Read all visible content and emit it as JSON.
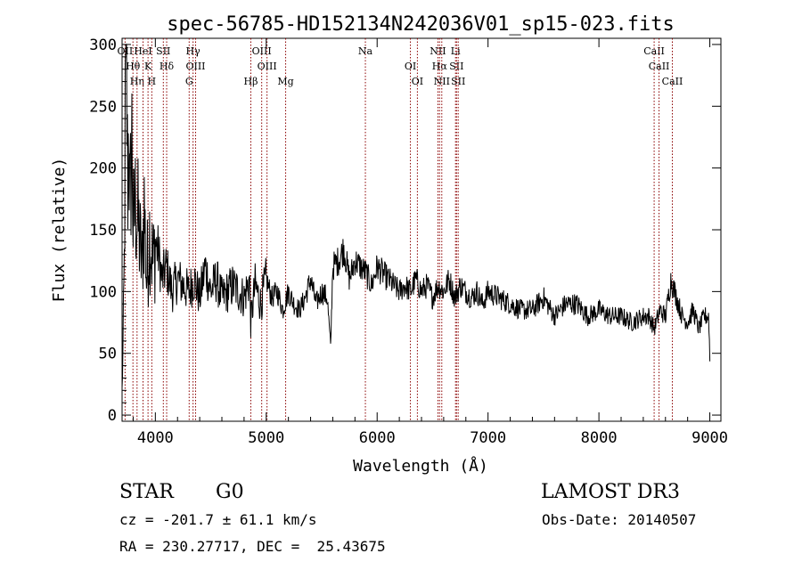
{
  "chart_data": {
    "type": "line",
    "title": "spec-56785-HD152134N242036V01_sp15-023.fits",
    "xlabel": "Wavelength (Å)",
    "ylabel": "Flux (relative)",
    "xlim": [
      3700,
      9100
    ],
    "ylim": [
      -5,
      305
    ],
    "xticks": [
      4000,
      5000,
      6000,
      7000,
      8000,
      9000
    ],
    "yticks": [
      0,
      50,
      100,
      150,
      200,
      250,
      300
    ],
    "series": [
      {
        "name": "flux",
        "x": [
          3700,
          3710,
          3720,
          3730,
          3740,
          3750,
          3760,
          3770,
          3780,
          3790,
          3800,
          3820,
          3840,
          3860,
          3880,
          3900,
          3920,
          3950,
          3980,
          4000,
          4030,
          4060,
          4100,
          4150,
          4200,
          4250,
          4300,
          4350,
          4400,
          4450,
          4500,
          4550,
          4600,
          4650,
          4700,
          4750,
          4800,
          4850,
          4860,
          4900,
          4950,
          5000,
          5050,
          5100,
          5150,
          5200,
          5250,
          5300,
          5350,
          5400,
          5450,
          5500,
          5550,
          5580,
          5600,
          5650,
          5700,
          5750,
          5800,
          5850,
          5900,
          5950,
          6000,
          6050,
          6100,
          6150,
          6200,
          6250,
          6300,
          6350,
          6400,
          6450,
          6500,
          6550,
          6600,
          6650,
          6700,
          6750,
          6800,
          6850,
          6900,
          6950,
          7000,
          7100,
          7200,
          7300,
          7400,
          7500,
          7600,
          7700,
          7800,
          7900,
          8000,
          8100,
          8200,
          8300,
          8400,
          8450,
          8500,
          8550,
          8600,
          8650,
          8700,
          8750,
          8800,
          8850,
          8900,
          8950,
          8990,
          9000
        ],
        "y": [
          20,
          60,
          120,
          250,
          290,
          180,
          240,
          160,
          200,
          230,
          150,
          170,
          160,
          140,
          120,
          170,
          110,
          150,
          120,
          140,
          130,
          110,
          120,
          100,
          110,
          105,
          100,
          110,
          95,
          120,
          100,
          110,
          95,
          100,
          105,
          100,
          95,
          110,
          75,
          105,
          90,
          110,
          95,
          100,
          85,
          100,
          90,
          85,
          95,
          110,
          90,
          100,
          95,
          55,
          120,
          125,
          135,
          110,
          125,
          120,
          115,
          105,
          120,
          115,
          110,
          105,
          100,
          105,
          100,
          110,
          100,
          105,
          95,
          105,
          100,
          110,
          95,
          105,
          100,
          95,
          100,
          90,
          100,
          95,
          90,
          85,
          85,
          95,
          80,
          90,
          90,
          80,
          85,
          80,
          80,
          75,
          80,
          80,
          70,
          85,
          80,
          110,
          95,
          80,
          75,
          85,
          70,
          80,
          80,
          45
        ]
      }
    ],
    "spectral_lines": [
      {
        "name": "OII",
        "wavelength": 3727
      },
      {
        "name": "Hθ",
        "wavelength": 3798
      },
      {
        "name": "Hη",
        "wavelength": 3835
      },
      {
        "name": "HeI",
        "wavelength": 3889
      },
      {
        "name": "K",
        "wavelength": 3934
      },
      {
        "name": "H",
        "wavelength": 3968
      },
      {
        "name": "SII",
        "wavelength": 4072
      },
      {
        "name": "Hδ",
        "wavelength": 4102
      },
      {
        "name": "G",
        "wavelength": 4305
      },
      {
        "name": "Hγ",
        "wavelength": 4340
      },
      {
        "name": "OIII",
        "wavelength": 4363
      },
      {
        "name": "Hβ",
        "wavelength": 4861
      },
      {
        "name": "OIII",
        "wavelength": 4959
      },
      {
        "name": "OIII",
        "wavelength": 5007
      },
      {
        "name": "Mg",
        "wavelength": 5175
      },
      {
        "name": "Na",
        "wavelength": 5894
      },
      {
        "name": "OI",
        "wavelength": 6300
      },
      {
        "name": "OI",
        "wavelength": 6363
      },
      {
        "name": "NII",
        "wavelength": 6548
      },
      {
        "name": "Hα",
        "wavelength": 6563
      },
      {
        "name": "NII",
        "wavelength": 6583
      },
      {
        "name": "Li",
        "wavelength": 6707
      },
      {
        "name": "SII",
        "wavelength": 6716
      },
      {
        "name": "SII",
        "wavelength": 6731
      },
      {
        "name": "CaII",
        "wavelength": 8498
      },
      {
        "name": "CaII",
        "wavelength": 8542
      },
      {
        "name": "CaII",
        "wavelength": 8662
      }
    ],
    "line_color": "#8b0000",
    "annotations": {
      "class": "STAR",
      "subclass": "G0",
      "survey": "LAMOST DR3",
      "cz": "cz = -201.7 ± 61.1 km/s",
      "obs_date": "Obs-Date: 20140507",
      "coords": "RA = 230.27717, DEC =  25.43675"
    }
  }
}
